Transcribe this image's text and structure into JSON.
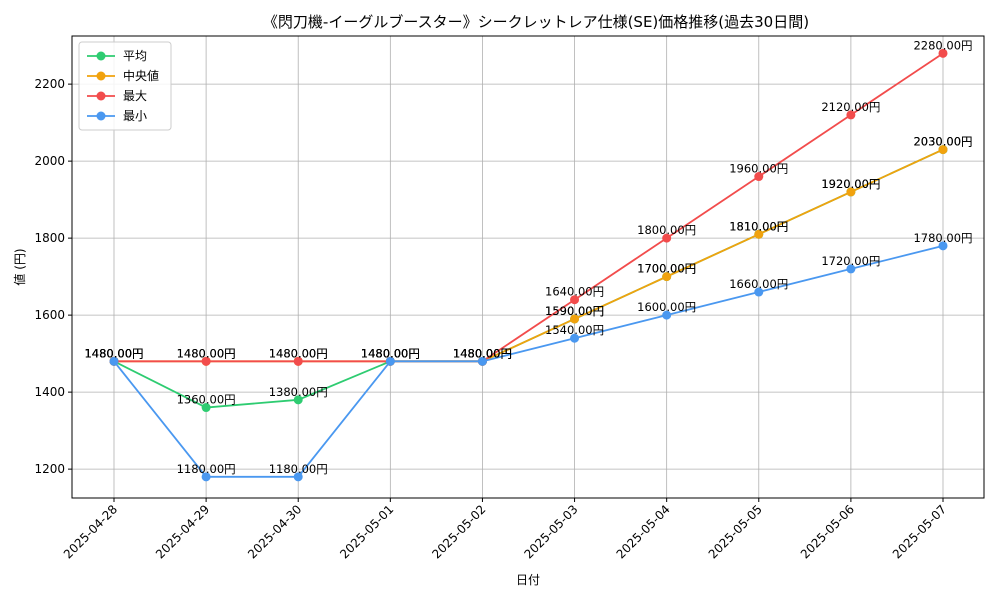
{
  "chart_data": {
    "type": "line",
    "title": "《閃刀機-イーグルブースター》シークレットレア仕様(SE)価格推移(過去30日間)",
    "xlabel": "日付",
    "ylabel": "値 (円)",
    "categories": [
      "2025-04-28",
      "2025-04-29",
      "2025-04-30",
      "2025-05-01",
      "2025-05-02",
      "2025-05-03",
      "2025-05-04",
      "2025-05-05",
      "2025-05-06",
      "2025-05-07"
    ],
    "ylim": [
      1125,
      2325
    ],
    "yticks": [
      1200,
      1400,
      1600,
      1800,
      2000,
      2200
    ],
    "grid": true,
    "legend_position": "top-left",
    "value_suffix": "円",
    "series": [
      {
        "name": "平均",
        "color": "#2ecc71",
        "values": [
          1480,
          1360,
          1380,
          1480,
          1480,
          1590,
          1700,
          1810,
          1920,
          2030
        ]
      },
      {
        "name": "中央値",
        "color": "#f1a20e",
        "values": [
          1480,
          1480,
          1480,
          1480,
          1480,
          1590,
          1700,
          1810,
          1920,
          2030
        ]
      },
      {
        "name": "最大",
        "color": "#f24c4c",
        "values": [
          1480,
          1480,
          1480,
          1480,
          1480,
          1640,
          1800,
          1960,
          2120,
          2280
        ]
      },
      {
        "name": "最小",
        "color": "#4a98f0",
        "values": [
          1480,
          1180,
          1180,
          1480,
          1480,
          1540,
          1600,
          1660,
          1720,
          1780
        ]
      }
    ]
  }
}
